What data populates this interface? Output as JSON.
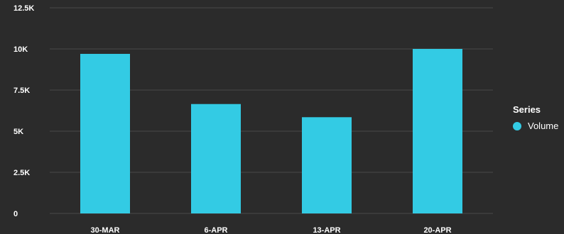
{
  "chart_data": {
    "type": "bar",
    "title": "",
    "xlabel": "",
    "ylabel": "",
    "categories": [
      "30-MAR",
      "6-APR",
      "13-APR",
      "20-APR"
    ],
    "series": [
      {
        "name": "Volume",
        "values": [
          9700,
          6650,
          5850,
          10000
        ]
      }
    ],
    "ylim": [
      0,
      12500
    ],
    "yticks": [
      0,
      2500,
      5000,
      7500,
      10000,
      12500
    ],
    "ytick_labels": [
      "0",
      "2.5K",
      "5K",
      "7.5K",
      "10K",
      "12.5K"
    ],
    "grid": true,
    "legend": {
      "title": "Series",
      "position": "right"
    }
  },
  "colors": {
    "background": "#2b2b2b",
    "gridline": "#4a4a4a",
    "bar": "#33cbe4",
    "text": "#ffffff"
  }
}
